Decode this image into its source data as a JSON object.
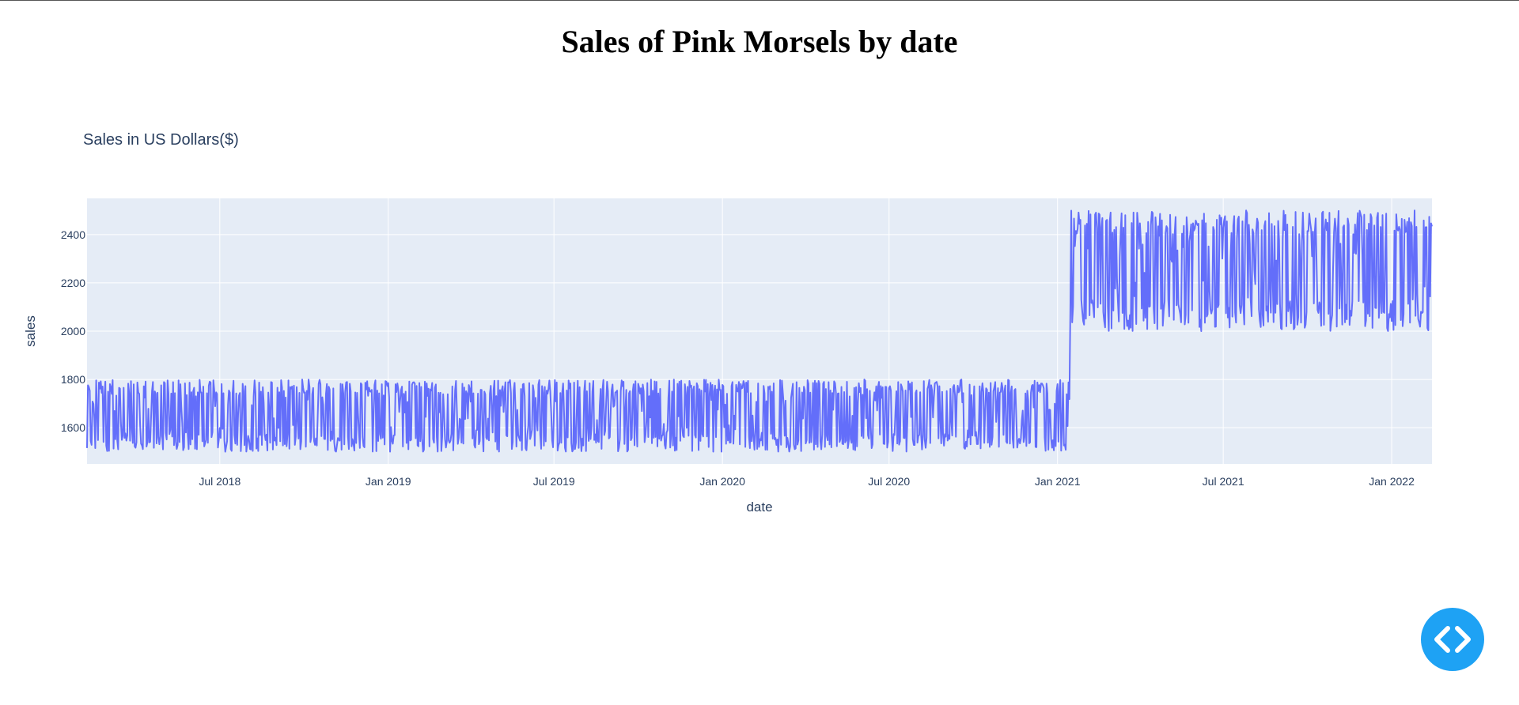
{
  "page": {
    "title": "Sales of Pink Morsels by date"
  },
  "colors": {
    "line": "#636efa",
    "plot_bg": "#e5ecf6",
    "grid": "#ffffff",
    "text": "#2a3f5f",
    "code_button": "#1ea2f4"
  },
  "icons": {
    "code_button": "code-icon"
  },
  "chart_data": {
    "type": "line",
    "title": "Sales in US Dollars($)",
    "xlabel": "date",
    "ylabel": "sales",
    "x_range": [
      "2018-02-06",
      "2022-02-14"
    ],
    "ylim": [
      1450,
      2550
    ],
    "x_ticks": [
      {
        "date": "2018-07-01",
        "label": "Jul 2018"
      },
      {
        "date": "2019-01-01",
        "label": "Jan 2019"
      },
      {
        "date": "2019-07-01",
        "label": "Jul 2019"
      },
      {
        "date": "2020-01-01",
        "label": "Jan 2020"
      },
      {
        "date": "2020-07-01",
        "label": "Jul 2020"
      },
      {
        "date": "2021-01-01",
        "label": "Jan 2021"
      },
      {
        "date": "2021-07-01",
        "label": "Jul 2021"
      },
      {
        "date": "2022-01-01",
        "label": "Jan 2022"
      }
    ],
    "y_ticks": [
      1600,
      1800,
      2000,
      2200,
      2400
    ],
    "grid": true,
    "legend": "none",
    "series": [
      {
        "segments": [
          {
            "from": "2018-02-06",
            "to": "2021-01-14",
            "min": 1500,
            "max": 1800
          },
          {
            "from": "2021-01-15",
            "to": "2022-02-14",
            "min": 2000,
            "max": 2500
          }
        ]
      }
    ]
  }
}
